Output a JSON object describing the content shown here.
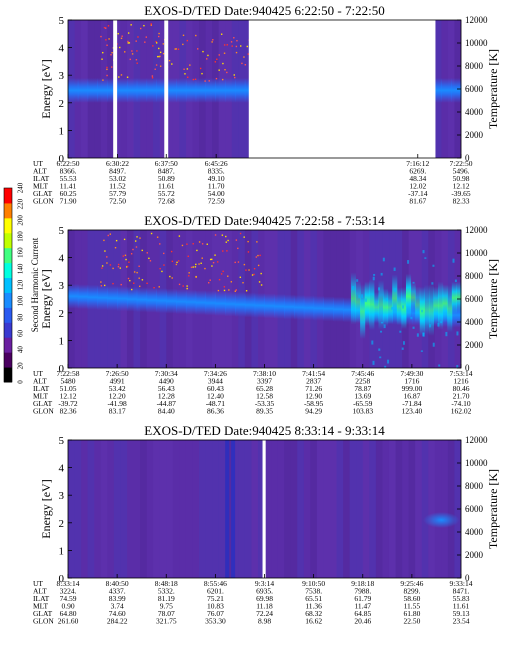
{
  "colorbar": {
    "label": "Second Harmonic Current",
    "ticks": [
      "0",
      "20",
      "40",
      "60",
      "80",
      "100",
      "120",
      "140",
      "160",
      "180",
      "200",
      "220",
      "240"
    ],
    "colors": [
      "#000000",
      "#4a0060",
      "#6a1fa0",
      "#3a3ad0",
      "#2a5af0",
      "#1a8cff",
      "#00c0ff",
      "#00ffe0",
      "#40ff80",
      "#c0ff00",
      "#ffff00",
      "#ff8000",
      "#ff0000"
    ]
  },
  "chart_data": [
    {
      "type": "heatmap",
      "title": "EXOS-D/TED   Date:940425   6:22:50 - 7:22:50",
      "ylabel": "Energy [eV]",
      "ylabel_right": "Temperature [K]",
      "yticks": [
        "0",
        "1",
        "2",
        "3",
        "4",
        "5"
      ],
      "yticks_right": [
        "0",
        "2000",
        "4000",
        "6000",
        "8000",
        "10000",
        "12000"
      ],
      "ylim": [
        0,
        5
      ],
      "ylim_right": [
        0,
        12000
      ],
      "data_gaps": [
        [
          0.115,
          0.125
        ],
        [
          0.245,
          0.255
        ],
        [
          0.46,
          0.935
        ]
      ],
      "band_center_ev": [
        2.45,
        2.45
      ],
      "band_halfwidth_ev": 0.45,
      "speckle": "upper-left",
      "row_labels": [
        "UT",
        "ALT",
        "ILAT",
        "MLT",
        "GLAT",
        "GLON"
      ],
      "columns": [
        {
          "UT": "6:22:50",
          "ALT": "8366.",
          "ILAT": "55.53",
          "MLT": "11.41",
          "GLAT": "60.25",
          "GLON": "71.90"
        },
        {
          "UT": "6:30:22",
          "ALT": "8497.",
          "ILAT": "53.02",
          "MLT": "11.52",
          "GLAT": "57.79",
          "GLON": "72.50"
        },
        {
          "UT": "6:37:50",
          "ALT": "8487.",
          "ILAT": "50.89",
          "MLT": "11.61",
          "GLAT": "55.72",
          "GLON": "72.68"
        },
        {
          "UT": "6:45:26",
          "ALT": "8335.",
          "ILAT": "49.10",
          "MLT": "11.70",
          "GLAT": "54.00",
          "GLON": "72.59"
        },
        {
          "UT": "7:16:12",
          "ALT": "6269.",
          "ILAT": "48.34",
          "MLT": "12.02",
          "GLAT": "-37.14",
          "GLON": "81.67"
        },
        {
          "UT": "7:22:50",
          "ALT": "5496.",
          "ILAT": "50.98",
          "MLT": "12.12",
          "GLAT": "-39.65",
          "GLON": "82.33"
        }
      ],
      "column_times": [
        0.0,
        0.126,
        0.25,
        0.377,
        0.89,
        1.0
      ]
    },
    {
      "type": "heatmap",
      "title": "EXOS-D/TED   Date:940425   7:22:58 - 7:53:14",
      "ylabel": "Energy [eV]",
      "ylabel_right": "Temperature [K]",
      "yticks": [
        "0",
        "1",
        "2",
        "3",
        "4",
        "5"
      ],
      "yticks_right": [
        "0",
        "2000",
        "4000",
        "6000",
        "8000",
        "10000",
        "12000"
      ],
      "ylim": [
        0,
        5
      ],
      "ylim_right": [
        0,
        12000
      ],
      "data_gaps": [],
      "band_center_ev": [
        2.6,
        1.9
      ],
      "band_halfwidth_ev": 0.45,
      "hot_region": [
        0.72,
        1.0
      ],
      "speckle": "upper-left",
      "row_labels": [
        "UT",
        "ALT",
        "ILAT",
        "MLT",
        "GLAT",
        "GLON"
      ],
      "columns": [
        {
          "UT": "7:22:58",
          "ALT": "5480",
          "ILAT": "51.05",
          "MLT": "12.12",
          "GLAT": "-39.72",
          "GLON": "82.36"
        },
        {
          "UT": "7:26:50",
          "ALT": "4991",
          "ILAT": "53.42",
          "MLT": "12.20",
          "GLAT": "-41.98",
          "GLON": "83.17"
        },
        {
          "UT": "7:30:34",
          "ALT": "4490",
          "ILAT": "56.43",
          "MLT": "12.28",
          "GLAT": "-44.87",
          "GLON": "84.40"
        },
        {
          "UT": "7:34:26",
          "ALT": "3944",
          "ILAT": "60.43",
          "MLT": "12.40",
          "GLAT": "-48.71",
          "GLON": "86.36"
        },
        {
          "UT": "7:38:10",
          "ALT": "3397",
          "ILAT": "65.28",
          "MLT": "12.58",
          "GLAT": "-53.35",
          "GLON": "89.35"
        },
        {
          "UT": "7:41:54",
          "ALT": "2837",
          "ILAT": "71.26",
          "MLT": "12.90",
          "GLAT": "-58.95",
          "GLON": "94.29"
        },
        {
          "UT": "7:45:46",
          "ALT": "2258",
          "ILAT": "78.87",
          "MLT": "13.69",
          "GLAT": "-65.59",
          "GLON": "103.83"
        },
        {
          "UT": "7:49:30",
          "ALT": "1716",
          "ILAT": "999.00",
          "MLT": "16.87",
          "GLAT": "-71.84",
          "GLON": "123.40"
        },
        {
          "UT": "7:53:14",
          "ALT": "1216",
          "ILAT": "80.46",
          "MLT": "21.70",
          "GLAT": "-74.10",
          "GLON": "162.02"
        }
      ],
      "column_times": [
        0.0,
        0.125,
        0.25,
        0.375,
        0.5,
        0.625,
        0.75,
        0.875,
        1.0
      ]
    },
    {
      "type": "heatmap",
      "title": "EXOS-D/TED   Date:940425   8:33:14 - 9:33:14",
      "ylabel": "Energy [eV]",
      "ylabel_right": "Temperature [K]",
      "yticks": [
        "0",
        "1",
        "2",
        "3",
        "4",
        "5"
      ],
      "yticks_right": [
        "0",
        "2000",
        "4000",
        "6000",
        "8000",
        "10000",
        "12000"
      ],
      "ylim": [
        0,
        5
      ],
      "ylim_right": [
        0,
        12000
      ],
      "data_gaps": [
        [
          0.495,
          0.503
        ]
      ],
      "dark_stripes": [
        0.4,
        0.415
      ],
      "band_center_ev": null,
      "right_blob": {
        "x": 0.95,
        "ev": 2.1
      },
      "speckle": "none",
      "row_labels": [
        "UT",
        "ALT",
        "ILAT",
        "MLT",
        "GLAT",
        "GLON"
      ],
      "columns": [
        {
          "UT": "8:33:14",
          "ALT": "3224.",
          "ILAT": "74.59",
          "MLT": "0.90",
          "GLAT": "64.80",
          "GLON": "261.60"
        },
        {
          "UT": "8:40:50",
          "ALT": "4337.",
          "ILAT": "83.99",
          "MLT": "3.74",
          "GLAT": "74.60",
          "GLON": "284.22"
        },
        {
          "UT": "8:48:18",
          "ALT": "5332.",
          "ILAT": "81.19",
          "MLT": "9.75",
          "GLAT": "78.07",
          "GLON": "321.75"
        },
        {
          "UT": "8:55:46",
          "ALT": "6201.",
          "ILAT": "75.21",
          "MLT": "10.83",
          "GLAT": "76.07",
          "GLON": "353.30"
        },
        {
          "UT": "9:3:14",
          "ALT": "6935.",
          "ILAT": "69.98",
          "MLT": "11.18",
          "GLAT": "72.24",
          "GLON": "8.98"
        },
        {
          "UT": "9:10:50",
          "ALT": "7538.",
          "ILAT": "65.51",
          "MLT": "11.36",
          "GLAT": "68.32",
          "GLON": "16.62"
        },
        {
          "UT": "9:18:18",
          "ALT": "7988.",
          "ILAT": "61.79",
          "MLT": "11.47",
          "GLAT": "64.85",
          "GLON": "20.46"
        },
        {
          "UT": "9:25:46",
          "ALT": "8299.",
          "ILAT": "58.60",
          "MLT": "11.55",
          "GLAT": "61.80",
          "GLON": "22.50"
        },
        {
          "UT": "9:33:14",
          "ALT": "8471.",
          "ILAT": "55.83",
          "MLT": "11.61",
          "GLAT": "59.13",
          "GLON": "23.54"
        }
      ],
      "column_times": [
        0.0,
        0.125,
        0.25,
        0.375,
        0.5,
        0.625,
        0.75,
        0.875,
        1.0
      ]
    }
  ]
}
